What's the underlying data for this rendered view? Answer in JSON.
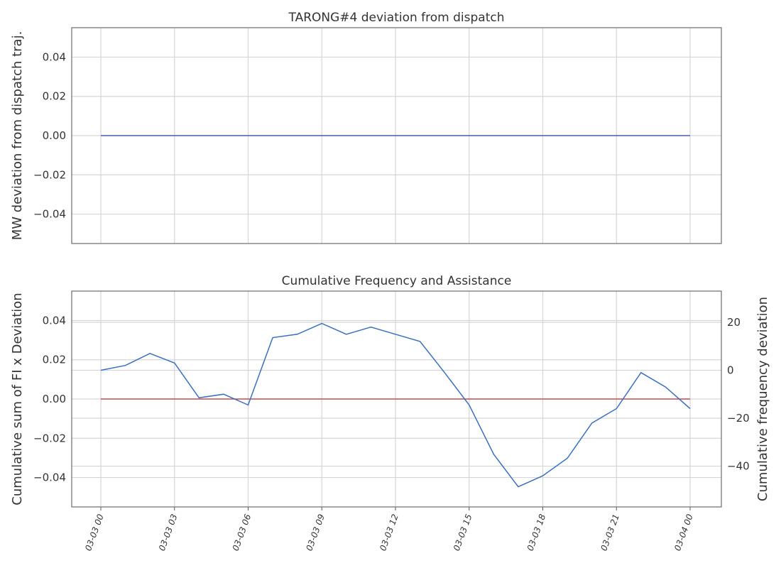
{
  "chart_data": [
    {
      "type": "line",
      "title": "TARONG#4 deviation from dispatch",
      "ylabel": "MW deviation from dispatch traj.",
      "x": [
        "03-03 00",
        "03-03 01",
        "03-03 02",
        "03-03 03",
        "03-03 04",
        "03-03 05",
        "03-03 06",
        "03-03 07",
        "03-03 08",
        "03-03 09",
        "03-03 10",
        "03-03 11",
        "03-03 12",
        "03-03 13",
        "03-03 14",
        "03-03 15",
        "03-03 16",
        "03-03 17",
        "03-03 18",
        "03-03 19",
        "03-03 20",
        "03-03 21",
        "03-03 22",
        "03-03 23",
        "03-04 00"
      ],
      "series": [
        {
          "color": "#4c5fb0",
          "values": [
            0,
            0,
            0,
            0,
            0,
            0,
            0,
            0,
            0,
            0,
            0,
            0,
            0,
            0,
            0,
            0,
            0,
            0,
            0,
            0,
            0,
            0,
            0,
            0,
            0
          ]
        }
      ],
      "ylim": [
        -0.055,
        0.055
      ],
      "yticks": [
        {
          "value": -0.04,
          "label": "−0.04"
        },
        {
          "value": -0.02,
          "label": "−0.02"
        },
        {
          "value": 0,
          "label": "0.00"
        },
        {
          "value": 0.02,
          "label": "0.02"
        },
        {
          "value": 0.04,
          "label": "0.04"
        }
      ],
      "xticks": [
        "03-03 00",
        "03-03 03",
        "03-03 06",
        "03-03 09",
        "03-03 12",
        "03-03 15",
        "03-03 18",
        "03-03 21",
        "03-04 00"
      ],
      "grid": true
    },
    {
      "type": "line",
      "title": "Cumulative Frequency and Assistance",
      "ylabel": "Cumulative sum of FI x Deviation",
      "y2label": "Cumulative frequency deviation",
      "x": [
        "03-03 00",
        "03-03 01",
        "03-03 02",
        "03-03 03",
        "03-03 04",
        "03-03 05",
        "03-03 06",
        "03-03 07",
        "03-03 08",
        "03-03 09",
        "03-03 10",
        "03-03 11",
        "03-03 12",
        "03-03 13",
        "03-03 14",
        "03-03 15",
        "03-03 16",
        "03-03 17",
        "03-03 18",
        "03-03 19",
        "03-03 20",
        "03-03 21",
        "03-03 22",
        "03-03 23",
        "03-04 00"
      ],
      "series": [
        {
          "color": "#c44e52",
          "values": [
            0,
            0,
            0,
            0,
            0,
            0,
            0,
            0,
            0,
            0,
            0,
            0,
            0,
            0,
            0,
            0,
            0,
            0,
            0,
            0,
            0,
            0,
            0,
            0,
            0
          ]
        },
        {
          "color": "#3a70c0",
          "axis": "y2",
          "values": [
            0,
            2,
            7,
            3,
            -11.5,
            -10,
            -14.5,
            13.6,
            15,
            19.5,
            15,
            18,
            15,
            12,
            -1,
            -14.5,
            -35,
            -48.6,
            -44,
            -36.7,
            -22,
            -16,
            -1,
            -7,
            -16
          ]
        }
      ],
      "ylim": [
        -0.055,
        0.055
      ],
      "yticks": [
        {
          "value": -0.04,
          "label": "−0.04"
        },
        {
          "value": -0.02,
          "label": "−0.02"
        },
        {
          "value": 0,
          "label": "0.00"
        },
        {
          "value": 0.02,
          "label": "0.02"
        },
        {
          "value": 0.04,
          "label": "0.04"
        }
      ],
      "y2lim": [
        -57,
        33
      ],
      "y2ticks": [
        {
          "value": -40,
          "label": "−40"
        },
        {
          "value": -20,
          "label": "−20"
        },
        0,
        20
      ],
      "xticks": [
        "03-03 00",
        "03-03 03",
        "03-03 06",
        "03-03 09",
        "03-03 12",
        "03-03 15",
        "03-03 18",
        "03-03 21",
        "03-04 00"
      ],
      "grid": true
    }
  ]
}
